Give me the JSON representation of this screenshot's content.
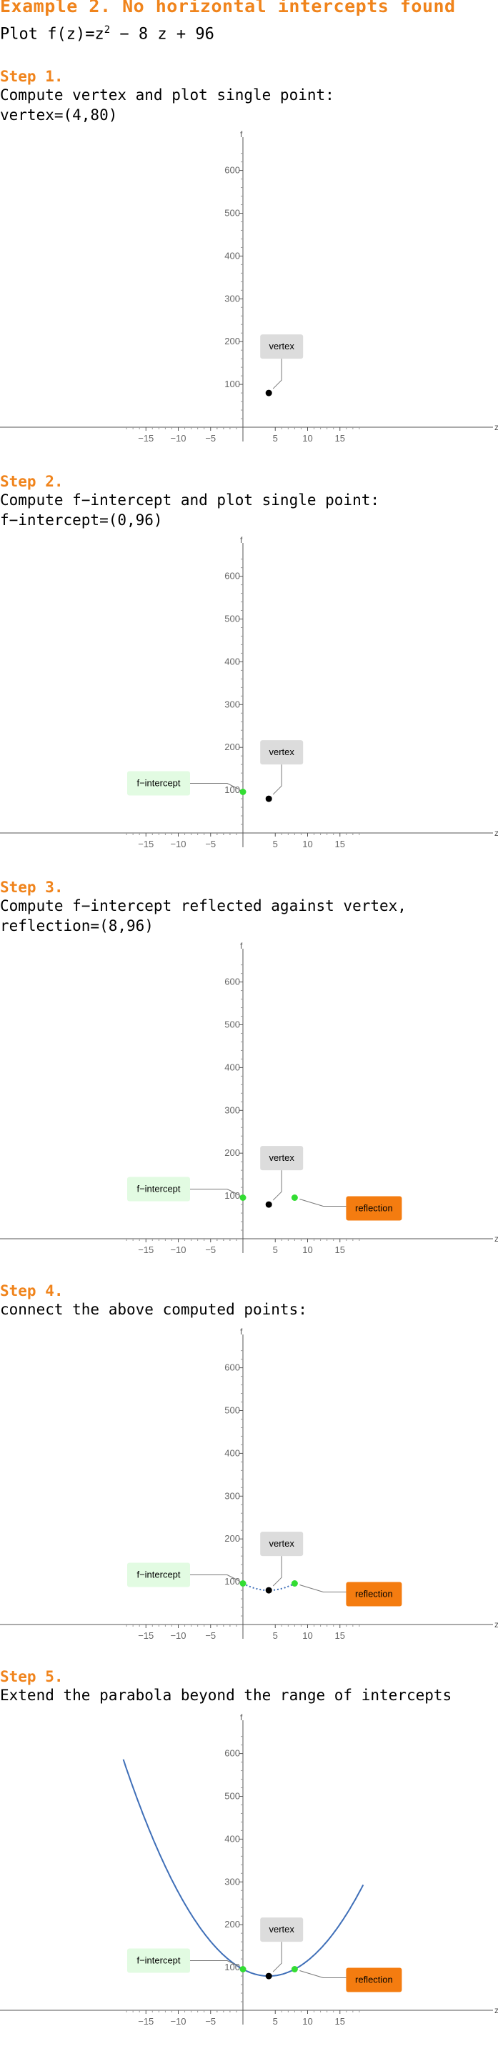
{
  "title": "Example 2. No horizontal intercepts found",
  "subtitle": {
    "prefix": "Plot f",
    "func_arg": "(z)",
    "equals": "=z",
    "exponent": "2",
    "rest": " − 8 z + 96"
  },
  "steps": [
    {
      "heading": "Step 1.",
      "lines": [
        "Compute vertex and plot single point:",
        "vertex=(4,80)"
      ]
    },
    {
      "heading": "Step 2.",
      "lines": [
        "Compute f−intercept and plot single point:",
        "f−intercept=(0,96)"
      ]
    },
    {
      "heading": "Step 3.",
      "lines": [
        "Compute f−intercept reflected against vertex,",
        "reflection=(8,96)"
      ]
    },
    {
      "heading": "Step 4.",
      "lines": [
        "connect the above computed points:"
      ]
    },
    {
      "heading": "Step 5.",
      "lines": [
        "Extend the parabola beyond the range of intercepts"
      ]
    }
  ],
  "labels": {
    "vertex": "vertex",
    "f_intercept": "f−intercept",
    "reflection": "reflection"
  },
  "colors": {
    "accent": "#f0841c",
    "vertex_point": "#000000",
    "intercept_point": "#33dd33",
    "curve": "#3f6fb8",
    "vertex_label_bg": "#dcdcdc",
    "intercept_label_bg": "#e2fbe2",
    "reflection_label_bg": "#f47c10",
    "axis": "#555555"
  },
  "chart_data": [
    {
      "type": "scatter",
      "xlabel": "z",
      "ylabel": "f",
      "xlim": [
        -18.5,
        19
      ],
      "ylim": [
        -30,
        670
      ],
      "x_ticks": [
        -15,
        -10,
        -5,
        5,
        10,
        15
      ],
      "y_ticks": [
        100,
        200,
        300,
        400,
        500,
        600
      ],
      "points": [
        {
          "label": "vertex",
          "x": 4,
          "y": 80
        }
      ]
    },
    {
      "type": "scatter",
      "xlabel": "z",
      "ylabel": "f",
      "xlim": [
        -18.5,
        19
      ],
      "ylim": [
        -30,
        670
      ],
      "x_ticks": [
        -15,
        -10,
        -5,
        5,
        10,
        15
      ],
      "y_ticks": [
        100,
        200,
        300,
        400,
        500,
        600
      ],
      "points": [
        {
          "label": "f−intercept",
          "x": 0,
          "y": 96
        },
        {
          "label": "vertex",
          "x": 4,
          "y": 80
        }
      ]
    },
    {
      "type": "scatter",
      "xlabel": "z",
      "ylabel": "f",
      "xlim": [
        -18.5,
        19
      ],
      "ylim": [
        -30,
        670
      ],
      "x_ticks": [
        -15,
        -10,
        -5,
        5,
        10,
        15
      ],
      "y_ticks": [
        100,
        200,
        300,
        400,
        500,
        600
      ],
      "points": [
        {
          "label": "f−intercept",
          "x": 0,
          "y": 96
        },
        {
          "label": "vertex",
          "x": 4,
          "y": 80
        },
        {
          "label": "reflection",
          "x": 8,
          "y": 96
        }
      ]
    },
    {
      "type": "line",
      "xlabel": "z",
      "ylabel": "f",
      "xlim": [
        -18.5,
        19
      ],
      "ylim": [
        -30,
        670
      ],
      "x_ticks": [
        -15,
        -10,
        -5,
        5,
        10,
        15
      ],
      "y_ticks": [
        100,
        200,
        300,
        400,
        500,
        600
      ],
      "curve": {
        "style": "dotted",
        "x_range": [
          0,
          8
        ]
      },
      "points": [
        {
          "label": "f−intercept",
          "x": 0,
          "y": 96
        },
        {
          "label": "vertex",
          "x": 4,
          "y": 80
        },
        {
          "label": "reflection",
          "x": 8,
          "y": 96
        }
      ]
    },
    {
      "type": "line",
      "xlabel": "z",
      "ylabel": "f",
      "xlim": [
        -18.5,
        19
      ],
      "ylim": [
        -30,
        670
      ],
      "x_ticks": [
        -15,
        -10,
        -5,
        5,
        10,
        15
      ],
      "y_ticks": [
        100,
        200,
        300,
        400,
        500,
        600
      ],
      "curve": {
        "style": "solid",
        "x_range": [
          -18.5,
          18.6
        ]
      },
      "points": [
        {
          "label": "f−intercept",
          "x": 0,
          "y": 96
        },
        {
          "label": "vertex",
          "x": 4,
          "y": 80
        },
        {
          "label": "reflection",
          "x": 8,
          "y": 96
        }
      ]
    }
  ]
}
